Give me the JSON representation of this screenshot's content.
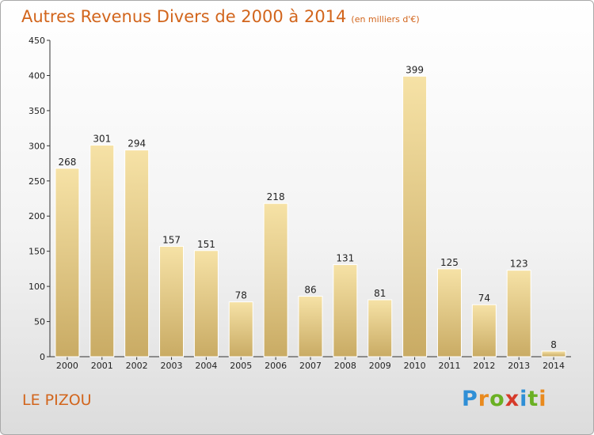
{
  "title": "Autres Revenus Divers de 2000 à 2014",
  "subtitle": "(en milliers d'€)",
  "commune": "LE PIZOU",
  "logo": {
    "letters": [
      "P",
      "r",
      "o",
      "x",
      "i",
      "t",
      "i"
    ],
    "colors": [
      "#2f8fd6",
      "#e98a1e",
      "#6ab023",
      "#d63a2a",
      "#2f8fd6",
      "#6ab023",
      "#e98a1e"
    ]
  },
  "colors": {
    "title": "#d2651c",
    "bar_light": "#f6e2a6",
    "bar_dark": "#c9ab64"
  },
  "chart_data": {
    "type": "bar",
    "categories": [
      "2000",
      "2001",
      "2002",
      "2003",
      "2004",
      "2005",
      "2006",
      "2007",
      "2008",
      "2009",
      "2010",
      "2011",
      "2012",
      "2013",
      "2014"
    ],
    "values": [
      268,
      301,
      294,
      157,
      151,
      78,
      218,
      86,
      131,
      81,
      399,
      125,
      74,
      123,
      8
    ],
    "yticks": [
      0,
      50,
      100,
      150,
      200,
      250,
      300,
      350,
      400,
      450
    ],
    "ylim": [
      0,
      450
    ],
    "grid": false,
    "data_labels": true
  }
}
